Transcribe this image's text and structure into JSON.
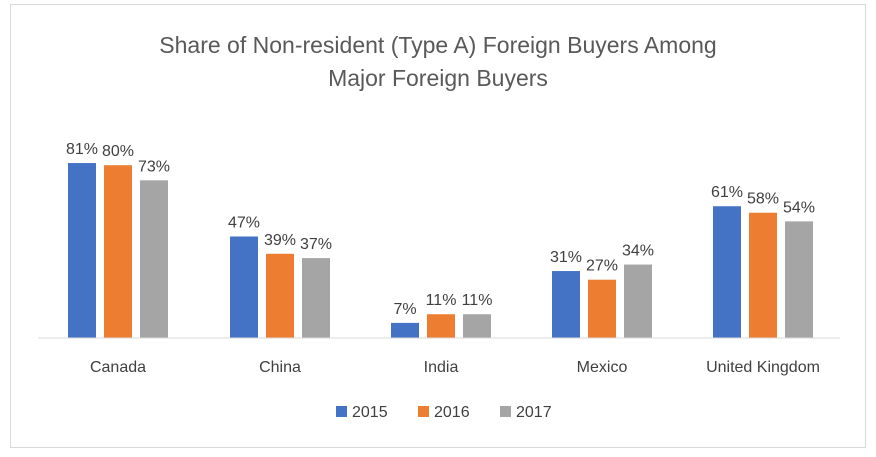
{
  "chart_data": {
    "type": "bar",
    "title_lines": [
      "Share of Non-resident (Type A) Foreign Buyers Among",
      "Major Foreign Buyers"
    ],
    "categories": [
      "Canada",
      "China",
      "India",
      "Mexico",
      "United Kingdom"
    ],
    "series": [
      {
        "name": "2015",
        "color": "#4472c4",
        "values": [
          81,
          47,
          7,
          31,
          61
        ],
        "labels": [
          "81%",
          "47%",
          "7%",
          "31%",
          "61%"
        ]
      },
      {
        "name": "2016",
        "color": "#ed7d31",
        "values": [
          80,
          39,
          11,
          27,
          58
        ],
        "labels": [
          "80%",
          "39%",
          "11%",
          "27%",
          "58%"
        ]
      },
      {
        "name": "2017",
        "color": "#a5a5a5",
        "values": [
          73,
          37,
          11,
          34,
          54
        ],
        "labels": [
          "73%",
          "37%",
          "11%",
          "34%",
          "54%"
        ]
      }
    ],
    "value_unit": "%",
    "ylim": [
      0,
      100
    ],
    "grid": false,
    "legend_position": "bottom"
  }
}
